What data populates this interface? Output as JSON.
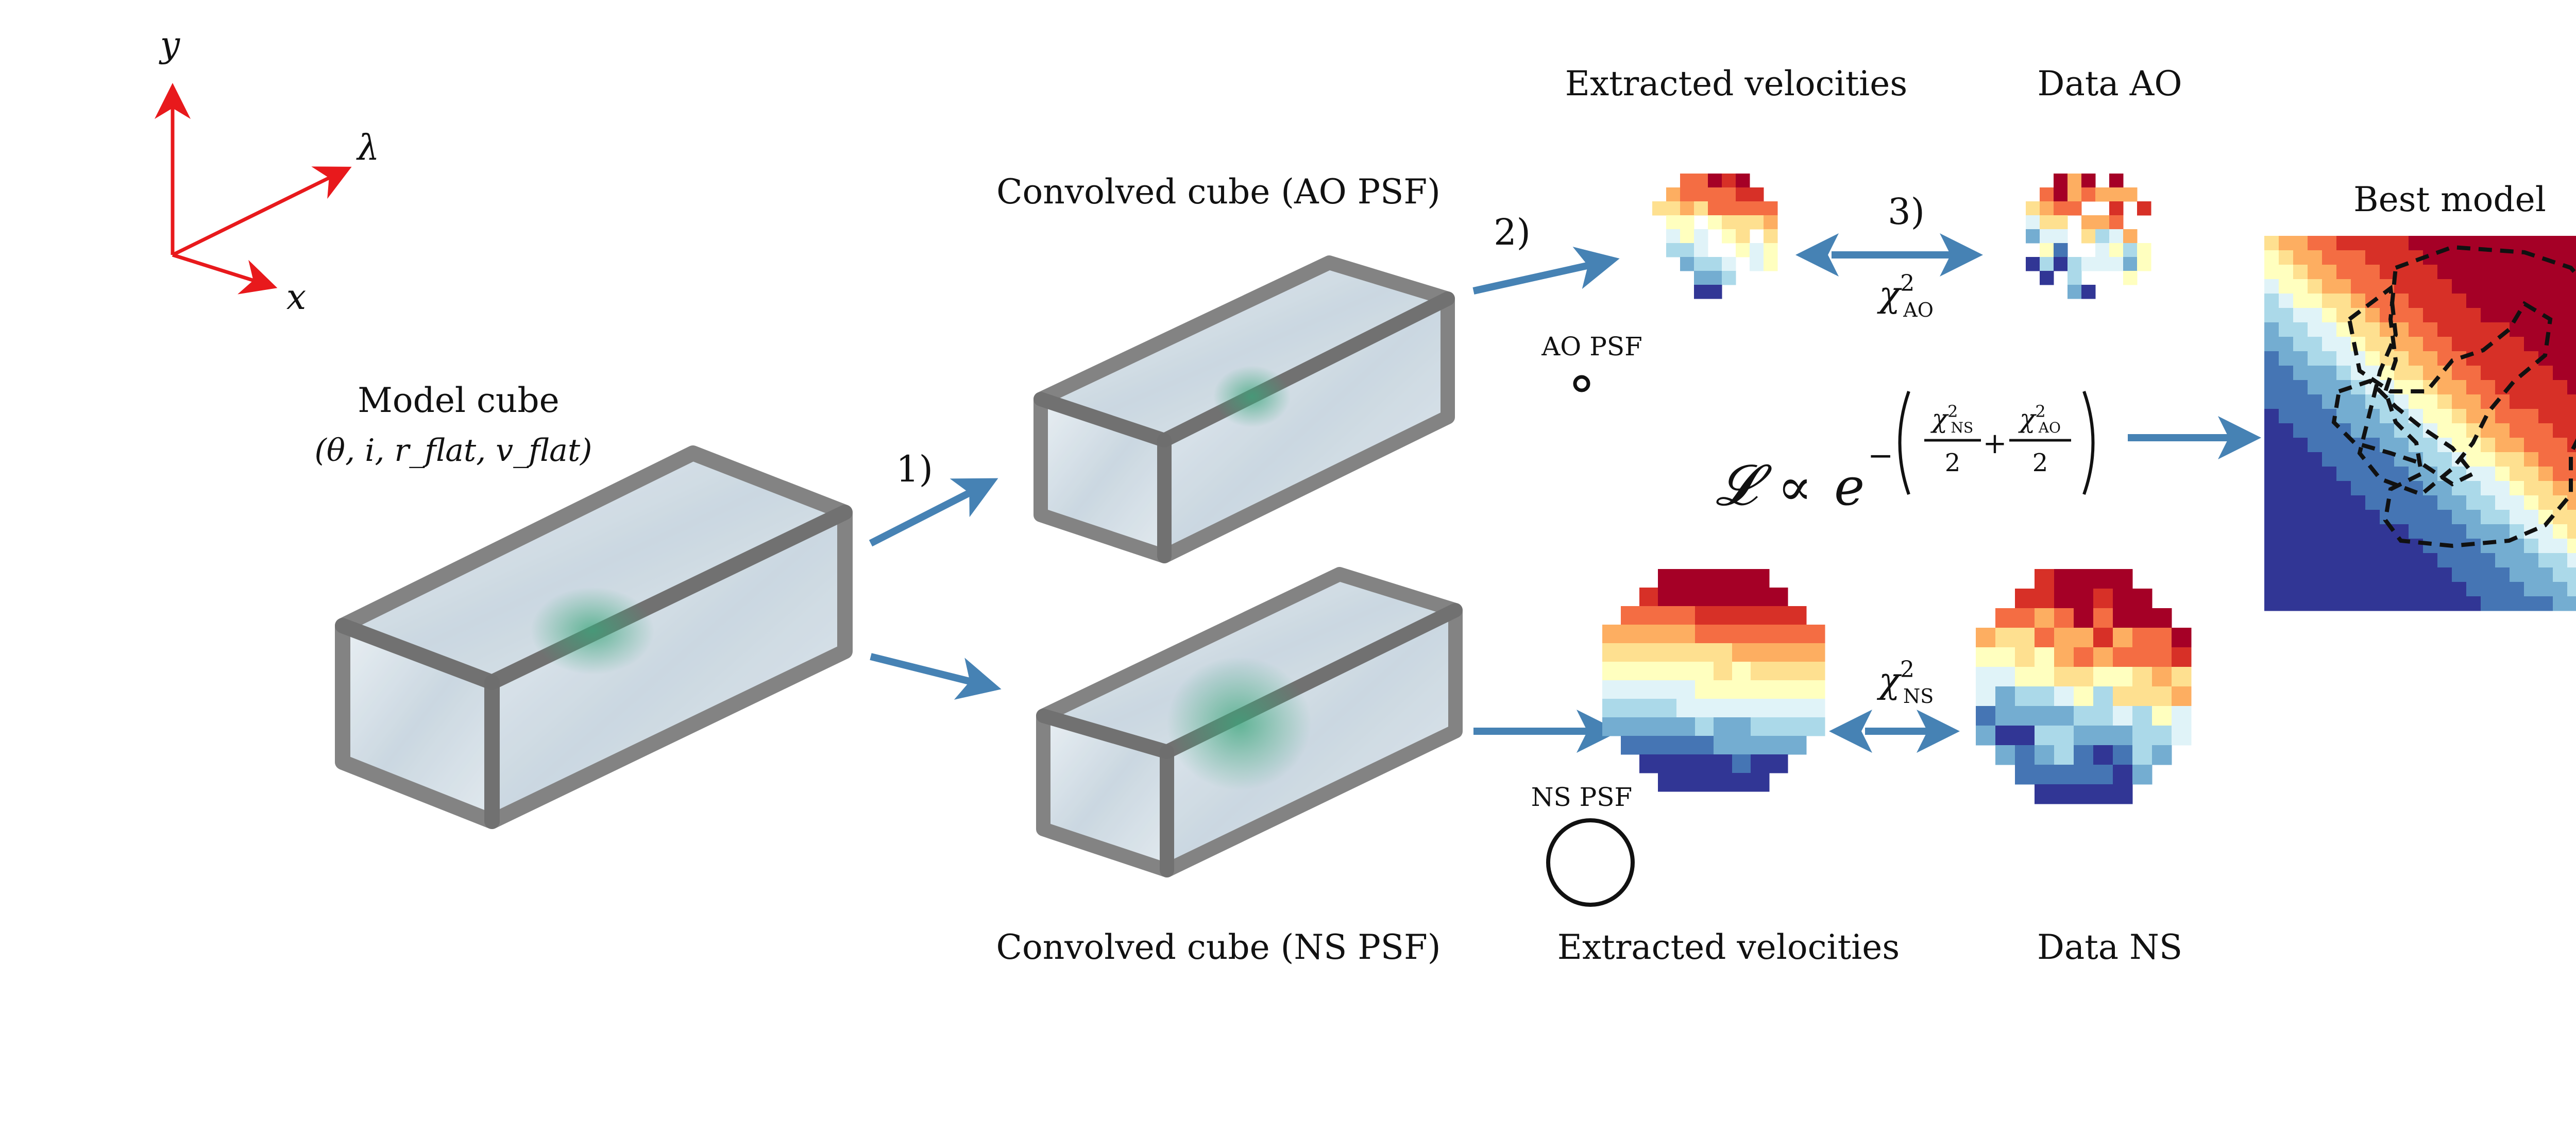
{
  "axes": {
    "y": "y",
    "lambda": "λ",
    "x": "x"
  },
  "model_cube": {
    "title": "Model cube",
    "params": "(θ, i, r_flat, v_flat)"
  },
  "convolved_ao": {
    "title": "Convolved cube (AO PSF)"
  },
  "convolved_ns": {
    "title": "Convolved cube (NS PSF)"
  },
  "steps": {
    "s1": "1)",
    "s2": "2)",
    "s3": "3)"
  },
  "velocity_maps": {
    "extracted_ao": "Extracted velocities",
    "data_ao": "Data AO",
    "extracted_ns": "Extracted velocities",
    "data_ns": "Data NS",
    "best_model": "Best model"
  },
  "psf": {
    "ao": "AO PSF",
    "ns": "NS PSF"
  },
  "chi2": {
    "ao": "χ²_AO",
    "ns": "χ²_NS"
  },
  "likelihood": "𝓛 ∝ exp(−(χ²_NS/2 + χ²_AO/2))",
  "colors": {
    "axis_arrow": "#e8191c",
    "flow_arrow": "#4682b4",
    "cube_frame": "#6e6e6e",
    "cube_fill": "#c9d6df",
    "blob": "#3aa57a",
    "red_high": "#a50026",
    "blue_low": "#313695"
  }
}
